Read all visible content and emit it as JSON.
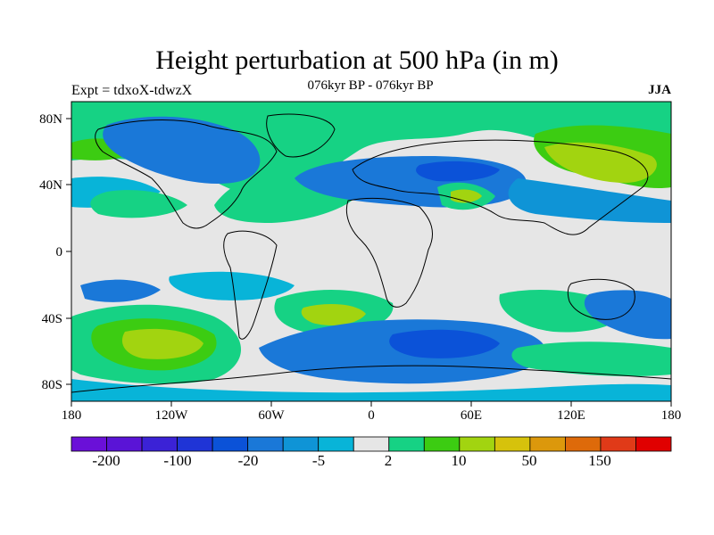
{
  "title": "Height perturbation at 500 hPa (in m)",
  "subtitle": "076kyr BP - 076kyr BP",
  "experiment": "Expt = tdxoX-tdwzX",
  "season": "JJA",
  "map": {
    "lon_ticks": [
      "180",
      "120W",
      "60W",
      "0",
      "60E",
      "120E",
      "180"
    ],
    "lat_ticks": [
      "80N",
      "40N",
      "0",
      "40S",
      "80S"
    ]
  },
  "colorbar": {
    "labels": [
      "-200",
      "-100",
      "-20",
      "-5",
      "2",
      "10",
      "50",
      "150"
    ],
    "colors": [
      "#6a10d8",
      "#5a14d6",
      "#3b22d6",
      "#1f34d6",
      "#0b52d8",
      "#1a78d8",
      "#0f94d6",
      "#08b4d8",
      "#e6e6e6",
      "#16d284",
      "#3ccc12",
      "#a2d410",
      "#d6c20c",
      "#dc980c",
      "#de6a0a",
      "#e03a18",
      "#e00000"
    ]
  },
  "colors": {
    "land_outline": "#000000",
    "ocean_neutral": "#e6e6e6"
  }
}
